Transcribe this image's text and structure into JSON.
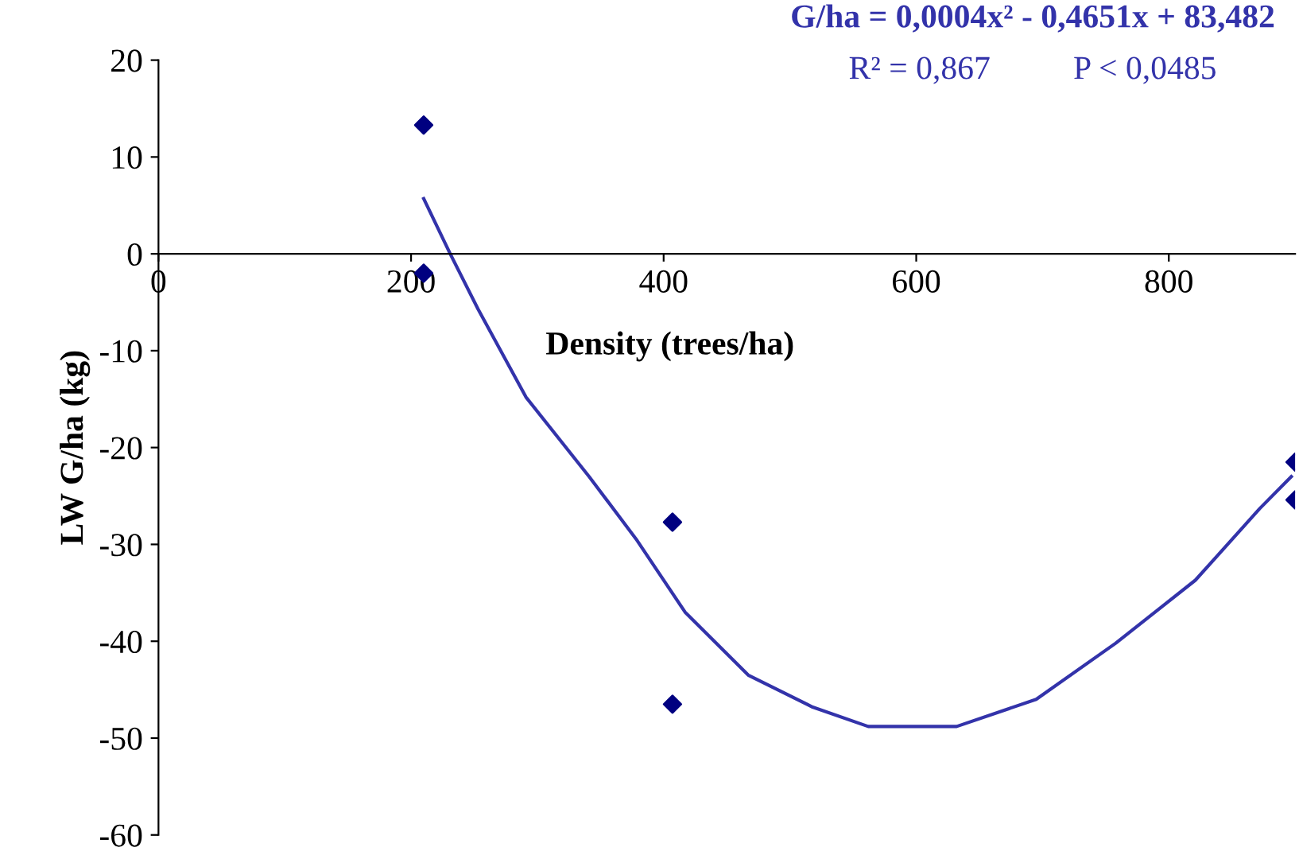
{
  "chart_data": {
    "type": "scatter",
    "xlabel": "Density (trees/ha)",
    "ylabel": "LW G/ha (kg)",
    "annotations": [
      "G/ha = 0,0004x² - 0,4651x + 83,482",
      "R² = 0,867          P < 0,0485"
    ],
    "xlim": [
      0,
      900
    ],
    "ylim": [
      -60,
      20
    ],
    "xticks": [
      0,
      200,
      400,
      600,
      800
    ],
    "yticks": [
      -60,
      -50,
      -40,
      -30,
      -20,
      -10,
      0,
      10,
      20
    ],
    "grid": false,
    "legend": false,
    "series": [
      {
        "color": "#000080",
        "marker": "diamond",
        "x": [
          210,
          210,
          407,
          407,
          900,
          900
        ],
        "values": [
          13.3,
          -2,
          -27.7,
          -46.5,
          -21.5,
          -25.4
        ]
      },
      {
        "type": "line",
        "color": "#3333aa",
        "marker": "none",
        "line_style": "solid",
        "x": [
          210,
          231,
          253,
          291,
          341,
          379,
          417,
          467,
          518,
          562,
          632,
          695,
          758,
          821,
          872,
          897
        ],
        "values": [
          5.7,
          0,
          -5.7,
          -14.8,
          -23,
          -29.6,
          -37,
          -43.5,
          -46.8,
          -48.8,
          -48.8,
          -46,
          -40.2,
          -33.7,
          -26.3,
          -23
        ]
      }
    ]
  }
}
